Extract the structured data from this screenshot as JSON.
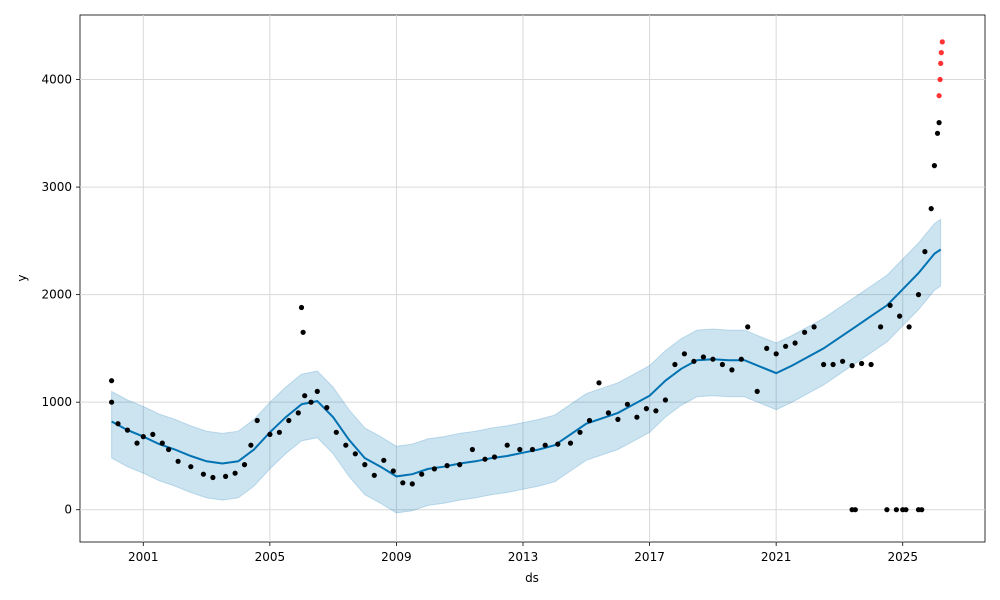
{
  "chart_data": {
    "type": "line",
    "title": "",
    "xlabel": "ds",
    "ylabel": "y",
    "xlim": [
      1999.0,
      2027.6
    ],
    "ylim": [
      -300,
      4600
    ],
    "grid": true,
    "xticks": [
      2001,
      2005,
      2009,
      2013,
      2017,
      2021,
      2025
    ],
    "xtick_labels": [
      "2001",
      "2005",
      "2009",
      "2013",
      "2017",
      "2021",
      "2025"
    ],
    "yticks": [
      0,
      1000,
      2000,
      3000,
      4000
    ],
    "ytick_labels": [
      "0",
      "1000",
      "2000",
      "3000",
      "4000"
    ],
    "colors": {
      "actual": "#000000",
      "forecast": "#0072B2",
      "interval": "#0072B2",
      "highlight": "#ff0000",
      "grid": "#d9d9d9"
    },
    "forecast": {
      "x": [
        2000.0,
        2000.5,
        2001.0,
        2001.5,
        2002.0,
        2002.5,
        2003.0,
        2003.5,
        2004.0,
        2004.5,
        2005.0,
        2005.5,
        2006.0,
        2006.5,
        2007.0,
        2007.5,
        2008.0,
        2008.5,
        2009.0,
        2009.5,
        2010.0,
        2010.5,
        2011.0,
        2011.5,
        2012.0,
        2012.5,
        2013.0,
        2013.5,
        2014.0,
        2014.5,
        2015.0,
        2015.5,
        2016.0,
        2016.5,
        2017.0,
        2017.5,
        2018.0,
        2018.5,
        2019.0,
        2019.5,
        2020.0,
        2020.5,
        2021.0,
        2021.5,
        2022.0,
        2022.5,
        2023.0,
        2023.5,
        2024.0,
        2024.5,
        2025.0,
        2025.5,
        2026.0,
        2026.2
      ],
      "y": [
        820,
        740,
        680,
        610,
        560,
        500,
        450,
        430,
        450,
        560,
        720,
        860,
        980,
        1010,
        860,
        650,
        480,
        400,
        310,
        330,
        380,
        400,
        430,
        450,
        480,
        500,
        530,
        560,
        600,
        700,
        800,
        850,
        900,
        980,
        1060,
        1200,
        1310,
        1390,
        1400,
        1390,
        1390,
        1330,
        1270,
        1340,
        1420,
        1500,
        1600,
        1700,
        1800,
        1900,
        2050,
        2200,
        2380,
        2420
      ],
      "lower": [
        480,
        400,
        340,
        270,
        220,
        160,
        110,
        90,
        110,
        220,
        380,
        520,
        640,
        670,
        520,
        310,
        140,
        60,
        -30,
        -10,
        40,
        60,
        90,
        110,
        140,
        160,
        190,
        220,
        260,
        360,
        460,
        510,
        560,
        640,
        720,
        860,
        970,
        1050,
        1060,
        1050,
        1050,
        990,
        930,
        1000,
        1080,
        1160,
        1260,
        1360,
        1460,
        1560,
        1710,
        1860,
        2040,
        2080
      ],
      "upper": [
        1100,
        1020,
        960,
        890,
        840,
        780,
        730,
        710,
        730,
        840,
        1000,
        1140,
        1260,
        1290,
        1140,
        930,
        760,
        680,
        590,
        610,
        660,
        680,
        710,
        730,
        760,
        780,
        810,
        840,
        880,
        980,
        1080,
        1130,
        1180,
        1260,
        1340,
        1480,
        1590,
        1670,
        1680,
        1670,
        1670,
        1610,
        1550,
        1620,
        1700,
        1780,
        1880,
        1980,
        2080,
        2180,
        2330,
        2480,
        2660,
        2700
      ]
    },
    "actual": {
      "x": [
        2000.0,
        2000.2,
        2000.5,
        2000.8,
        2001.0,
        2001.3,
        2001.6,
        2001.8,
        2002.1,
        2002.5,
        2002.9,
        2003.2,
        2003.6,
        2003.9,
        2004.2,
        2004.4,
        2004.6,
        2005.0,
        2005.3,
        2005.6,
        2005.9,
        2006.1,
        2006.3,
        2006.5,
        2006.8,
        2007.1,
        2007.4,
        2007.7,
        2008.0,
        2008.3,
        2008.6,
        2008.9,
        2009.2,
        2009.5,
        2009.8,
        2010.2,
        2010.6,
        2011.0,
        2011.4,
        2011.8,
        2012.1,
        2012.5,
        2012.9,
        2013.3,
        2013.7,
        2014.1,
        2014.5,
        2014.8,
        2015.1,
        2015.4,
        2015.7,
        2016.0,
        2016.3,
        2016.6,
        2016.9,
        2017.2,
        2017.5,
        2017.8,
        2018.1,
        2018.4,
        2018.7,
        2019.0,
        2019.3,
        2019.6,
        2019.9,
        2020.1,
        2020.4,
        2020.7,
        2021.0,
        2021.3,
        2021.6,
        2021.9,
        2022.2,
        2022.5,
        2022.8,
        2023.1,
        2023.4,
        2023.7,
        2024.0,
        2024.3,
        2024.6,
        2024.9,
        2025.2,
        2025.5,
        2025.7,
        2025.9,
        2026.0,
        2026.1,
        2026.15,
        2000.0,
        2006.0,
        2006.05,
        2023.4,
        2023.5,
        2024.5,
        2024.8,
        2025.0,
        2025.1,
        2025.5,
        2025.6
      ],
      "y": [
        1200,
        800,
        740,
        620,
        680,
        700,
        620,
        560,
        450,
        400,
        330,
        300,
        310,
        340,
        420,
        600,
        830,
        700,
        720,
        830,
        900,
        1060,
        1000,
        1100,
        950,
        720,
        600,
        520,
        420,
        320,
        460,
        360,
        250,
        240,
        330,
        380,
        410,
        420,
        560,
        470,
        490,
        600,
        560,
        560,
        600,
        610,
        620,
        720,
        830,
        1180,
        900,
        840,
        980,
        860,
        940,
        920,
        1020,
        1350,
        1450,
        1380,
        1420,
        1400,
        1350,
        1300,
        1400,
        1700,
        1100,
        1500,
        1450,
        1520,
        1550,
        1650,
        1700,
        1350,
        1350,
        1380,
        1340,
        1360,
        1350,
        1700,
        1900,
        1800,
        1700,
        2000,
        2400,
        2800,
        3200,
        3500,
        3600,
        1000,
        1880,
        1650,
        0,
        0,
        0,
        0,
        0,
        0,
        0,
        0
      ]
    },
    "recent": {
      "x": [
        2026.15,
        2026.18,
        2026.2,
        2026.22,
        2026.25
      ],
      "y": [
        3850,
        4000,
        4150,
        4250,
        4350
      ]
    }
  }
}
